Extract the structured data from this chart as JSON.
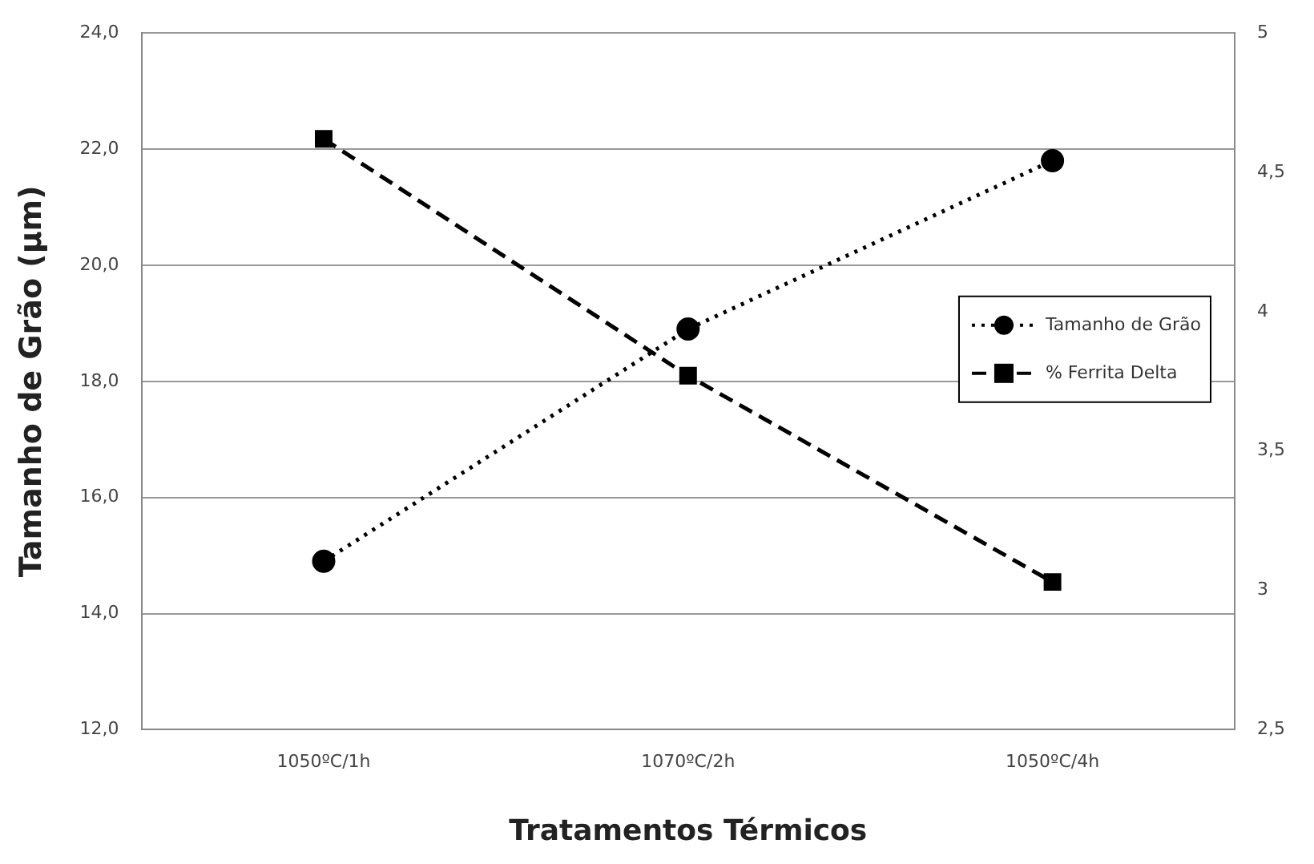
{
  "chart_data": {
    "type": "line",
    "xlabel": "Tratamentos Térmicos",
    "ylabel": "Tamanho de Grão (µm)",
    "categories": [
      "1050ºC/1h",
      "1070ºC/2h",
      "1050ºC/4h"
    ],
    "series": [
      {
        "name": "Tamanho de Grão",
        "color": "#000000",
        "values": [
          14.9,
          18.9,
          21.8
        ],
        "marker": "circle",
        "line_style": "dotted"
      },
      {
        "name": "% Ferrita Delta",
        "color": "#000000",
        "values": [
          4.62,
          3.77,
          3.03
        ],
        "marker": "square",
        "line_style": "dashed",
        "axis": "y2"
      }
    ],
    "ylim": [
      12,
      24
    ],
    "yticks": [
      {
        "value": 12,
        "label": "12,0"
      },
      {
        "value": 14,
        "label": "14,0"
      },
      {
        "value": 16,
        "label": "16,0"
      },
      {
        "value": 18,
        "label": "18,0"
      },
      {
        "value": 20,
        "label": "20,0"
      },
      {
        "value": 22,
        "label": "22,0"
      },
      {
        "value": 24,
        "label": "24,0"
      }
    ],
    "y2lim": [
      2.5,
      5
    ],
    "y2ticks": [
      {
        "value": 2.5,
        "label": "2,5"
      },
      3,
      {
        "value": 3.5,
        "label": "3,5"
      },
      4,
      {
        "value": 4.5,
        "label": "4,5"
      },
      5
    ],
    "grid": "y",
    "legend": "right"
  }
}
